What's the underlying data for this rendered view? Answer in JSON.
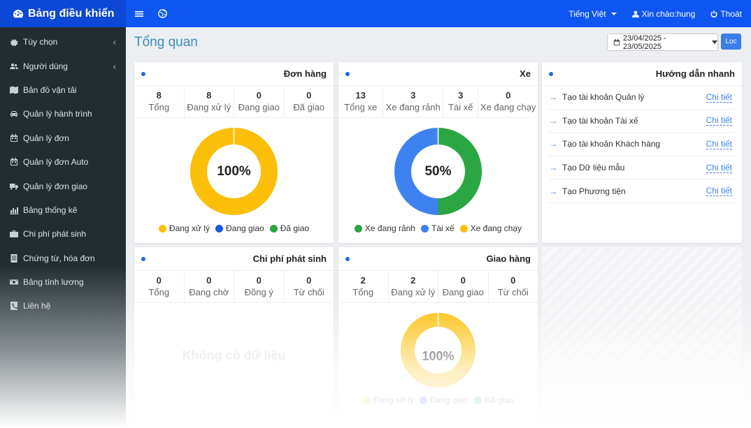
{
  "sidebar": {
    "brand": "Bảng điều khiển",
    "items": [
      {
        "label": "Tùy chọn",
        "icon": "gear-icon",
        "has_children": true
      },
      {
        "label": "Người dùng",
        "icon": "users-icon",
        "has_children": true
      },
      {
        "label": "Bản đồ vận tải",
        "icon": "map-icon",
        "has_children": false
      },
      {
        "label": "Quản lý hành trình",
        "icon": "car-icon",
        "has_children": false
      },
      {
        "label": "Quản lý đơn",
        "icon": "calendar-icon",
        "has_children": false
      },
      {
        "label": "Quản lý đơn Auto",
        "icon": "calendar-icon",
        "has_children": false
      },
      {
        "label": "Quản lý đơn giao",
        "icon": "truck-icon",
        "has_children": false
      },
      {
        "label": "Bảng thống kê",
        "icon": "bar-chart-icon",
        "has_children": false
      },
      {
        "label": "Chi phí phát sinh",
        "icon": "briefcase-icon",
        "has_children": false
      },
      {
        "label": "Chứng từ, hóa đơn",
        "icon": "document-icon",
        "has_children": false
      },
      {
        "label": "Bảng tính lương",
        "icon": "money-icon",
        "has_children": false
      },
      {
        "label": "Liên hệ",
        "icon": "phone-icon",
        "has_children": false
      }
    ]
  },
  "topbar": {
    "language": "Tiếng Việt",
    "greeting": "Xin chào:hung",
    "logout": "Thoát"
  },
  "page": {
    "title": "Tổng quan",
    "date_range": "23/04/2025 - 23/05/2025",
    "filter_label": "Lọc"
  },
  "orders": {
    "title": "Đơn hàng",
    "stats": [
      {
        "value": "8",
        "label": "Tổng"
      },
      {
        "value": "8",
        "label": "Đang xử lý"
      },
      {
        "value": "0",
        "label": "Đang giao"
      },
      {
        "value": "0",
        "label": "Đã giao"
      }
    ],
    "donut_label": "100%",
    "legend": [
      "Đang xử lý",
      "Đang giao",
      "Đã giao"
    ]
  },
  "vehicles": {
    "title": "Xe",
    "stats": [
      {
        "value": "13",
        "label": "Tổng xe"
      },
      {
        "value": "3",
        "label": "Xe đang rảnh"
      },
      {
        "value": "3",
        "label": "Tài xế"
      },
      {
        "value": "0",
        "label": "Xe đang chạy"
      }
    ],
    "donut_label": "50%",
    "legend": [
      "Xe đang rảnh",
      "Tài xế",
      "Xe đang chạy"
    ]
  },
  "guide": {
    "title": "Hướng dẫn nhanh",
    "items": [
      {
        "label": "Tạo tài khoản Quản lý",
        "link": "Chi tiết"
      },
      {
        "label": "Tạo tài khoản Tài xế",
        "link": "Chi tiết"
      },
      {
        "label": "Tạo tài khoản Khách hàng",
        "link": "Chi tiết"
      },
      {
        "label": "Tạo Dữ liệu mẫu",
        "link": "Chi tiết"
      },
      {
        "label": "Tạo Phương tiện",
        "link": "Chi tiết"
      }
    ]
  },
  "costs": {
    "title": "Chi phí phát sinh",
    "stats": [
      {
        "value": "0",
        "label": "Tổng"
      },
      {
        "value": "0",
        "label": "Đang chờ"
      },
      {
        "value": "0",
        "label": "Đồng ý"
      },
      {
        "value": "0",
        "label": "Từ chối"
      }
    ],
    "empty": "Không có dữ liệu"
  },
  "delivery": {
    "title": "Giao hàng",
    "stats": [
      {
        "value": "2",
        "label": "Tổng"
      },
      {
        "value": "2",
        "label": "Đang xử lý"
      },
      {
        "value": "0",
        "label": "Đang giao"
      },
      {
        "value": "0",
        "label": "Từ chối"
      }
    ],
    "donut_label": "100%",
    "legend": [
      "Đang xử lý",
      "Đang giao",
      "Đã giao"
    ]
  },
  "colors": {
    "yellow": "#fbbf0a",
    "blue": "#3d82ef",
    "green": "#2aa642",
    "dark_blue": "#1a56e6"
  },
  "chart_data": [
    {
      "type": "pie",
      "categories": [
        "Đang xử lý",
        "Đang giao",
        "Đã giao"
      ],
      "values": [
        8,
        0,
        0
      ]
    },
    {
      "type": "pie",
      "categories": [
        "Xe đang rảnh",
        "Tài xế",
        "Xe đang chạy"
      ],
      "values": [
        3,
        3,
        0
      ]
    },
    {
      "type": "pie",
      "categories": [
        "Đang xử lý",
        "Đang giao",
        "Đã giao"
      ],
      "values": [
        2,
        0,
        0
      ]
    }
  ]
}
